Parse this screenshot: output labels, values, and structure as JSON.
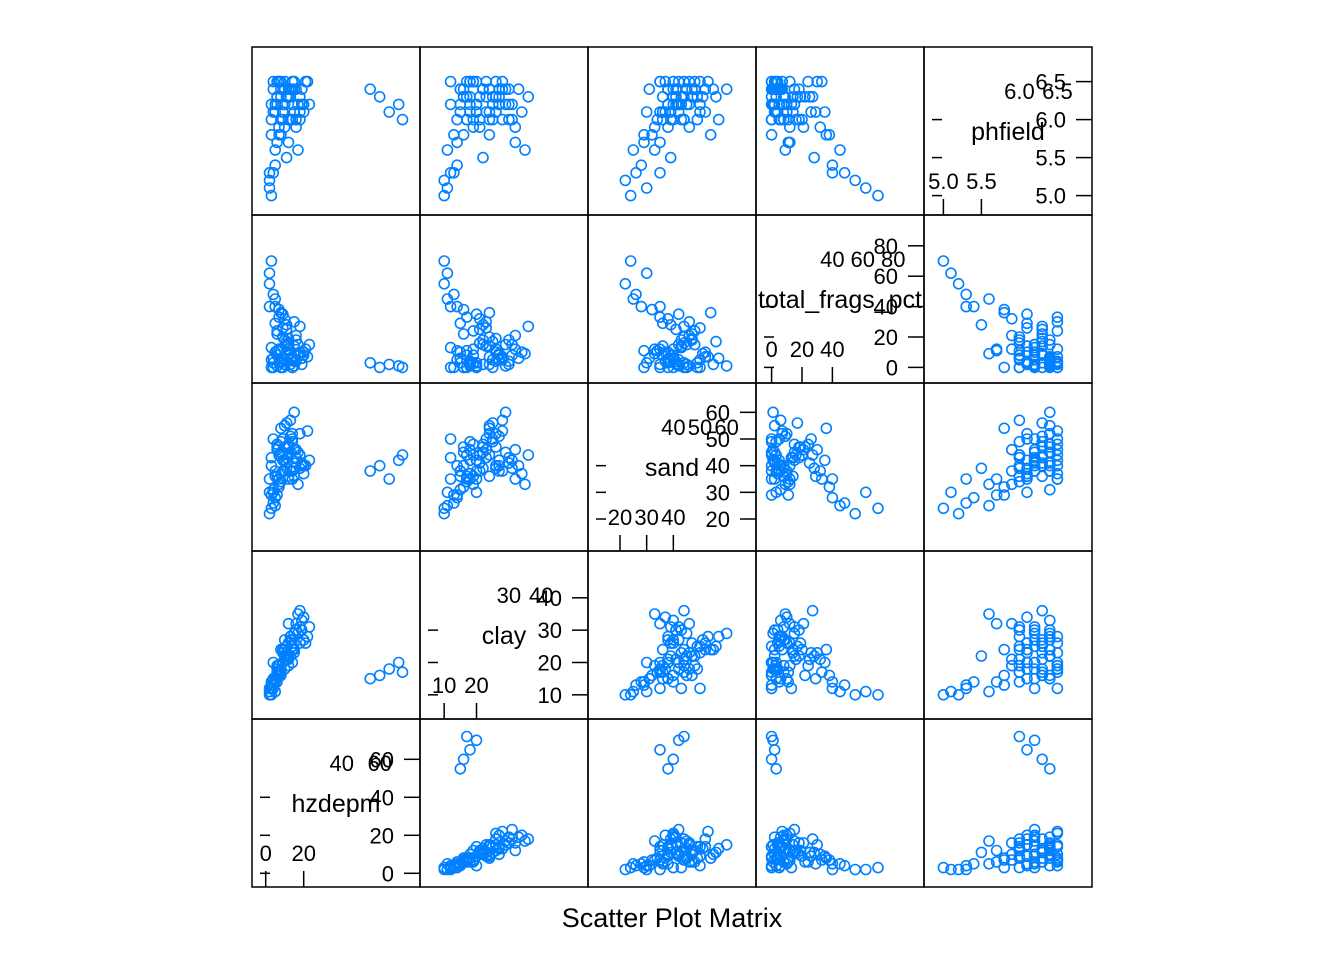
{
  "chart_data": {
    "type": "scatter",
    "title": "",
    "xlabel": "Scatter Plot Matrix",
    "marker": "open-circle",
    "colors": {
      "point": "#0080ff",
      "axis": "#000000",
      "background": "#ffffff"
    },
    "grid": false,
    "legend": "none",
    "variables": [
      {
        "name": "hzdepm",
        "range": [
          -3,
          77
        ],
        "ticks_low": [
          0,
          20,
          40
        ],
        "ticks_high": [
          40,
          60
        ],
        "low_tick_labels": [
          "0",
          "20"
        ],
        "high_tick_labels": [
          "40",
          "60"
        ],
        "left_tick_labels": [
          "0",
          "20",
          "40",
          "60"
        ],
        "right_tick_labels": [
          "40",
          "60"
        ]
      },
      {
        "name": "clay",
        "range": [
          5,
          52
        ],
        "ticks_low": [
          10,
          20,
          30
        ],
        "ticks_high": [
          30,
          40
        ],
        "low_tick_labels": [
          "10",
          "20"
        ],
        "high_tick_labels": [
          "30",
          "40"
        ],
        "left_tick_labels": [
          "10",
          "20",
          "30",
          "40"
        ],
        "right_tick_labels": [
          "30",
          "40"
        ]
      },
      {
        "name": "sand",
        "range": [
          11,
          68
        ],
        "ticks_low": [
          20,
          30,
          40
        ],
        "ticks_high": [
          40,
          50,
          60
        ],
        "low_tick_labels": [
          "20",
          "30",
          "40"
        ],
        "high_tick_labels": [
          "40",
          "50",
          "60"
        ],
        "left_tick_labels": [
          "20",
          "30",
          "40",
          "50",
          "60"
        ],
        "right_tick_labels": [
          "40",
          "50",
          "60"
        ]
      },
      {
        "name": "total_frags_pct",
        "display_label": "total_frags_pct",
        "range": [
          -5,
          95
        ],
        "ticks_low": [
          0,
          20,
          40
        ],
        "ticks_high": [
          40,
          60,
          80
        ],
        "low_tick_labels": [
          "0",
          "20",
          "40"
        ],
        "high_tick_labels": [
          "40",
          "60",
          "80"
        ],
        "left_tick_labels": [
          "0",
          "20",
          "40",
          "60",
          "80"
        ],
        "right_tick_labels": [
          "40",
          "60",
          "80"
        ]
      },
      {
        "name": "phfield",
        "range": [
          4.85,
          6.85
        ],
        "ticks_low": [
          5.0,
          5.5,
          6.0
        ],
        "ticks_high": [
          6.0,
          6.5
        ],
        "low_tick_labels": [
          "5.0",
          "5.5"
        ],
        "high_tick_labels": [
          "6.0",
          "6.5"
        ],
        "left_tick_labels": [
          "5.0",
          "5.5",
          "6.0",
          "6.5"
        ],
        "right_tick_labels": [
          "6.0",
          "6.5"
        ]
      }
    ],
    "observations": {
      "columns": [
        "hzdepm",
        "clay",
        "sand",
        "total_frags_pct",
        "phfield"
      ],
      "rows": [
        [
          2,
          12,
          35,
          40,
          5.3
        ],
        [
          3,
          14,
          40,
          5,
          6.0
        ],
        [
          5,
          15,
          38,
          10,
          6.2
        ],
        [
          8,
          16,
          45,
          0,
          6.4
        ],
        [
          10,
          18,
          42,
          2,
          6.5
        ],
        [
          4,
          20,
          30,
          3,
          6.1
        ],
        [
          6,
          17,
          36,
          8,
          6.3
        ],
        [
          12,
          22,
          48,
          15,
          6.4
        ],
        [
          9,
          24,
          44,
          20,
          6.0
        ],
        [
          14,
          25,
          50,
          5,
          6.2
        ],
        [
          7,
          19,
          33,
          12,
          5.9
        ],
        [
          11,
          21,
          41,
          25,
          6.3
        ],
        [
          15,
          23,
          46,
          30,
          6.5
        ],
        [
          3,
          13,
          29,
          0,
          5.8
        ],
        [
          18,
          26,
          52,
          10,
          6.1
        ],
        [
          13,
          28,
          38,
          5,
          6.4
        ],
        [
          16,
          30,
          43,
          18,
          6.0
        ],
        [
          5,
          11,
          25,
          45,
          5.6
        ],
        [
          20,
          27,
          40,
          8,
          6.2
        ],
        [
          8,
          18,
          37,
          4,
          6.5
        ],
        [
          10,
          24,
          55,
          2,
          6.4
        ],
        [
          6,
          16,
          47,
          22,
          6.3
        ],
        [
          12,
          32,
          35,
          12,
          5.7
        ],
        [
          9,
          20,
          42,
          35,
          6.1
        ],
        [
          14,
          25,
          49,
          0,
          6.0
        ],
        [
          4,
          15,
          31,
          6,
          6.4
        ],
        [
          17,
          29,
          45,
          15,
          6.2
        ],
        [
          11,
          22,
          39,
          28,
          5.5
        ],
        [
          7,
          19,
          44,
          3,
          6.5
        ],
        [
          13,
          27,
          51,
          9,
          6.3
        ],
        [
          2,
          10,
          22,
          55,
          5.2
        ],
        [
          15,
          24,
          36,
          14,
          6.1
        ],
        [
          19,
          33,
          40,
          6,
          6.4
        ],
        [
          6,
          18,
          46,
          1,
          6.2
        ],
        [
          10,
          21,
          38,
          32,
          5.9
        ],
        [
          22,
          28,
          53,
          7,
          6.5
        ],
        [
          8,
          17,
          34,
          11,
          6.0
        ],
        [
          12,
          26,
          47,
          19,
          6.3
        ],
        [
          5,
          14,
          28,
          40,
          5.4
        ],
        [
          16,
          30,
          41,
          4,
          6.4
        ],
        [
          9,
          23,
          50,
          26,
          6.1
        ],
        [
          14,
          20,
          35,
          0,
          6.5
        ],
        [
          3,
          12,
          43,
          13,
          6.2
        ],
        [
          18,
          31,
          39,
          8,
          6.0
        ],
        [
          11,
          25,
          56,
          17,
          6.3
        ],
        [
          7,
          16,
          32,
          38,
          5.8
        ],
        [
          13,
          22,
          45,
          2,
          6.4
        ],
        [
          20,
          34,
          37,
          10,
          6.1
        ],
        [
          6,
          19,
          48,
          24,
          6.5
        ],
        [
          10,
          27,
          42,
          5,
          6.2
        ],
        [
          15,
          29,
          60,
          1,
          6.4
        ],
        [
          4,
          13,
          26,
          48,
          5.3
        ],
        [
          12,
          21,
          44,
          16,
          6.0
        ],
        [
          17,
          35,
          33,
          9,
          5.6
        ],
        [
          8,
          18,
          49,
          3,
          6.3
        ],
        [
          21,
          26,
          40,
          12,
          6.5
        ],
        [
          5,
          15,
          36,
          29,
          6.1
        ],
        [
          14,
          24,
          52,
          7,
          6.4
        ],
        [
          9,
          20,
          38,
          0,
          6.2
        ],
        [
          16,
          32,
          46,
          21,
          5.9
        ],
        [
          2,
          11,
          30,
          62,
          5.1
        ],
        [
          11,
          23,
          43,
          14,
          6.3
        ],
        [
          13,
          28,
          57,
          6,
          6.0
        ],
        [
          7,
          17,
          35,
          33,
          6.5
        ],
        [
          19,
          30,
          41,
          2,
          6.2
        ],
        [
          10,
          22,
          47,
          18,
          6.4
        ],
        [
          6,
          14,
          29,
          11,
          5.7
        ],
        [
          15,
          26,
          39,
          4,
          6.1
        ],
        [
          18,
          36,
          44,
          27,
          6.3
        ],
        [
          4,
          12,
          50,
          0,
          6.5
        ],
        [
          12,
          19,
          36,
          8,
          6.0
        ],
        [
          23,
          31,
          42,
          15,
          6.2
        ],
        [
          8,
          24,
          54,
          36,
          5.8
        ],
        [
          14,
          27,
          38,
          5,
          6.4
        ],
        [
          3,
          10,
          24,
          70,
          5.0
        ],
        [
          60,
          16,
          40,
          0,
          6.3
        ],
        [
          65,
          18,
          35,
          2,
          6.1
        ],
        [
          70,
          20,
          42,
          1,
          6.2
        ],
        [
          55,
          15,
          38,
          3,
          6.4
        ],
        [
          72,
          17,
          44,
          0,
          6.0
        ]
      ]
    }
  }
}
